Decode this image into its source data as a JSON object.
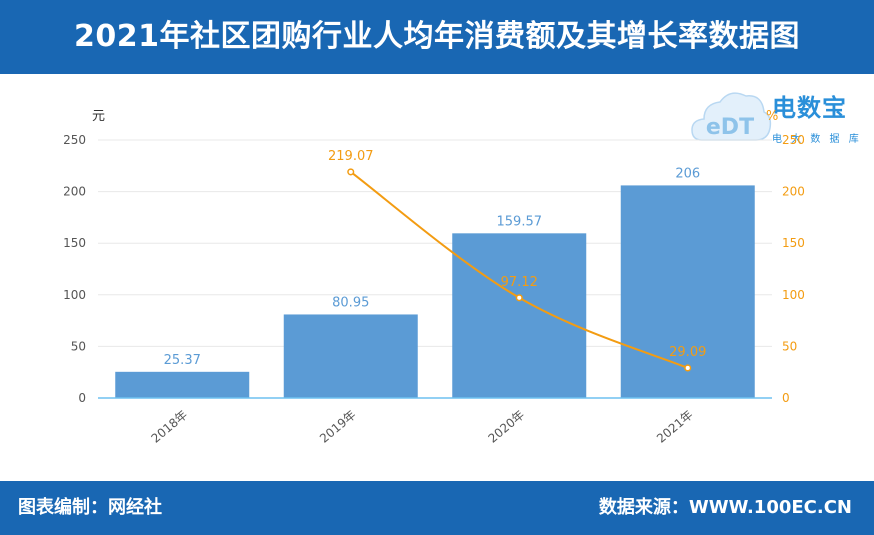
{
  "header": {
    "title": "2021年社区团购行业人均年消费额及其增长率数据图"
  },
  "footer": {
    "left": "图表编制：网经社",
    "right": "数据来源：WWW.100EC.CN"
  },
  "logo": {
    "text": "电数宝",
    "sub": "电 大 数 据 库",
    "mark": "eDT"
  },
  "colors": {
    "bar": "#5b9bd5",
    "line": "#f39c12",
    "header": "#1967b3",
    "bar_label": "#5b9bd5",
    "line_label": "#f39c12"
  },
  "chart_data": {
    "type": "bar",
    "categories": [
      "2018年",
      "2019年",
      "2020年",
      "2021年"
    ],
    "series": [
      {
        "type": "bar",
        "axis": "left",
        "values": [
          25.37,
          80.95,
          159.57,
          206
        ],
        "labels": [
          "25.37",
          "80.95",
          "159.57",
          "206"
        ]
      },
      {
        "type": "line",
        "axis": "right",
        "values": [
          null,
          219.07,
          97.12,
          29.09
        ],
        "labels": [
          "",
          "219.07",
          "97.12",
          "29.09"
        ]
      }
    ],
    "left_axis": {
      "unit": "元",
      "ticks": [
        "0",
        "50",
        "100",
        "150",
        "200",
        "250"
      ],
      "range": [
        0,
        250
      ]
    },
    "right_axis": {
      "unit": "%",
      "ticks": [
        "0",
        "50",
        "100",
        "150",
        "200",
        "250"
      ],
      "range": [
        0,
        250
      ]
    },
    "grid": true
  }
}
